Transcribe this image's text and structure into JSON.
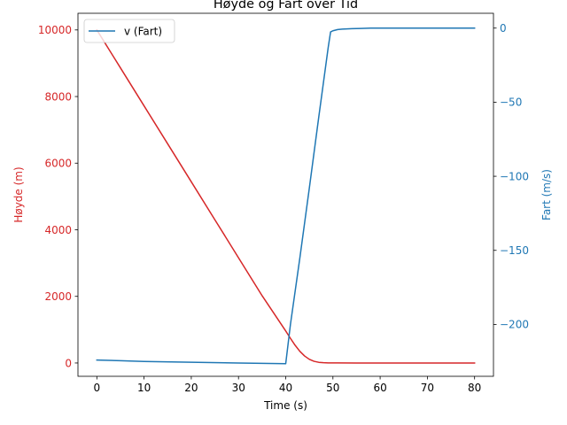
{
  "chart_data": {
    "type": "line",
    "title": "Høyde og Fart over Tid",
    "xlabel": "Time (s)",
    "xlim": [
      -4,
      84
    ],
    "x_ticks": [
      0,
      10,
      20,
      30,
      40,
      50,
      60,
      70,
      80
    ],
    "left_axis": {
      "label": "Høyde (m)",
      "color": "#d62728",
      "ylim": [
        -400,
        10500
      ],
      "ticks": [
        0,
        2000,
        4000,
        6000,
        8000,
        10000
      ]
    },
    "right_axis": {
      "label": "Fart (m/s)",
      "color": "#1f77b4",
      "ylim": [
        -235,
        10
      ],
      "ticks": [
        -200,
        -150,
        -100,
        -50,
        0
      ],
      "tick_labels": [
        "−200",
        "−150",
        "−100",
        "−50",
        "0"
      ]
    },
    "legend": {
      "position": "top-left",
      "entries": [
        "v (Fart)"
      ]
    },
    "series": [
      {
        "name": "",
        "axis": "left",
        "color": "#d62728",
        "x": [
          0,
          5,
          10,
          15,
          20,
          25,
          30,
          35,
          40,
          41,
          42,
          43,
          44,
          45,
          46,
          47,
          48,
          49,
          50,
          55,
          60,
          70,
          80
        ],
        "y": [
          10000,
          8860,
          7720,
          6580,
          5440,
          4300,
          3160,
          2020,
          960,
          740,
          530,
          350,
          210,
          110,
          50,
          20,
          8,
          3,
          1,
          0,
          0,
          0,
          0
        ]
      },
      {
        "name": "v (Fart)",
        "axis": "right",
        "color": "#1f77b4",
        "x": [
          0,
          5,
          10,
          20,
          30,
          40,
          41,
          43,
          45,
          47,
          49,
          49.5,
          50,
          51,
          52,
          54,
          56,
          58,
          60,
          70,
          80
        ],
        "y": [
          -224,
          -224.5,
          -225,
          -225.5,
          -226,
          -226.5,
          -200,
          -155,
          -108,
          -60,
          -13,
          -2.6,
          -1.8,
          -1.0,
          -0.7,
          -0.4,
          -0.2,
          0,
          0,
          0,
          0
        ]
      }
    ]
  }
}
